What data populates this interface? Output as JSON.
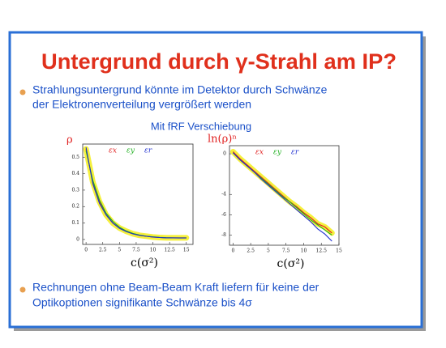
{
  "slide": {
    "title": "Untergrund durch γ-Strahl am IP?",
    "bullets": [
      [
        "Strahlungsuntergrund könnte im Detektor durch Schwänze",
        "der Elektronenverteilung vergrößert werden"
      ],
      [
        "Rechnungen ohne Beam-Beam Kraft liefern für keine der",
        "Optikoptionen signifikante Schwänze bis 4σ"
      ]
    ],
    "caption": "Mit fRF Verschiebung"
  },
  "chart_data": [
    {
      "type": "line",
      "ylabel": "ρ",
      "xlabel": "c(σ²)",
      "band_color": "#f5f03c",
      "x": [
        0,
        1,
        2,
        3,
        4,
        5,
        6,
        7,
        8,
        9,
        10,
        11,
        12,
        13,
        14,
        15
      ],
      "series": [
        {
          "name": "εx",
          "color": "#e02020",
          "values": [
            0.55,
            0.35,
            0.23,
            0.15,
            0.1,
            0.07,
            0.05,
            0.035,
            0.025,
            0.02,
            0.015,
            0.012,
            0.01,
            0.01,
            0.01,
            0.01
          ]
        },
        {
          "name": "εy",
          "color": "#20b020",
          "values": [
            0.54,
            0.36,
            0.24,
            0.16,
            0.11,
            0.075,
            0.052,
            0.037,
            0.027,
            0.02,
            0.016,
            0.013,
            0.011,
            0.01,
            0.01,
            0.01
          ]
        },
        {
          "name": "εr",
          "color": "#2030d0",
          "values": [
            0.56,
            0.34,
            0.22,
            0.15,
            0.1,
            0.068,
            0.048,
            0.034,
            0.025,
            0.019,
            0.015,
            0.012,
            0.01,
            0.01,
            0.009,
            0.009
          ]
        }
      ],
      "xlim": [
        -0.5,
        16
      ],
      "ylim": [
        -0.03,
        0.58
      ],
      "xticks": [
        0,
        2.5,
        5,
        7.5,
        10,
        12.5,
        15
      ],
      "yticks": [
        0,
        0.1,
        0.2,
        0.3,
        0.4,
        0.5
      ]
    },
    {
      "type": "line",
      "ylabel": "ln(ρ)ⁿ",
      "xlabel": "c(σ²)",
      "band_color": "#f5f03c",
      "x": [
        0,
        1,
        2,
        3,
        4,
        5,
        6,
        7,
        8,
        9,
        10,
        11,
        12,
        13,
        14
      ],
      "series": [
        {
          "name": "εx",
          "color": "#e02020",
          "values": [
            0.2,
            -0.5,
            -1.1,
            -1.7,
            -2.3,
            -2.9,
            -3.5,
            -4.1,
            -4.7,
            -5.2,
            -5.8,
            -6.3,
            -6.9,
            -7.2,
            -7.8
          ]
        },
        {
          "name": "εy",
          "color": "#20b020",
          "values": [
            0.1,
            -0.6,
            -1.2,
            -1.8,
            -2.4,
            -3.0,
            -3.6,
            -4.2,
            -4.7,
            -5.3,
            -5.9,
            -6.5,
            -7.0,
            -7.5,
            -8.0
          ]
        },
        {
          "name": "εr",
          "color": "#2030d0",
          "values": [
            0.1,
            -0.6,
            -1.2,
            -1.8,
            -2.5,
            -3.1,
            -3.7,
            -4.3,
            -4.9,
            -5.5,
            -6.1,
            -6.7,
            -7.4,
            -7.9,
            -8.6
          ]
        }
      ],
      "xlim": [
        -0.5,
        15
      ],
      "ylim": [
        -9,
        0.8
      ],
      "xticks": [
        0,
        2.5,
        5,
        7.5,
        10,
        12.5,
        15
      ],
      "yticks": [
        0,
        -4,
        -6,
        -8
      ]
    }
  ]
}
